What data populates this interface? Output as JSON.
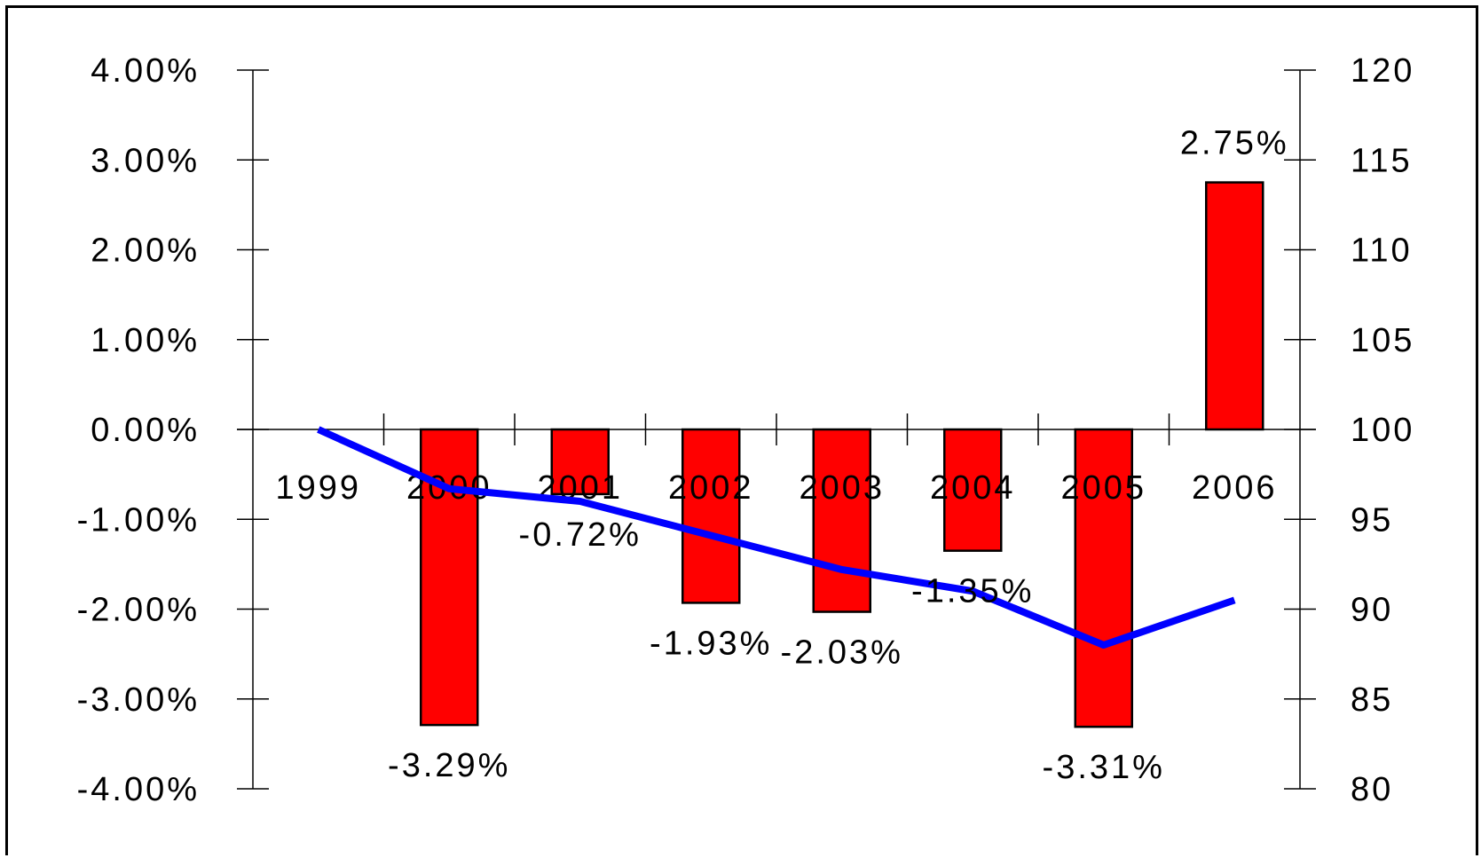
{
  "chart_data": {
    "type": "bar",
    "categories": [
      "1999",
      "2000",
      "2001",
      "2002",
      "2003",
      "2004",
      "2005",
      "2006"
    ],
    "series": [
      {
        "axis": "left",
        "type": "bar",
        "values": [
          null,
          -3.29,
          -0.72,
          -1.93,
          -2.03,
          -1.35,
          -3.31,
          2.75
        ],
        "data_labels": [
          "",
          "-3.29%",
          "-0.72%",
          "-1.93%",
          "-2.03%",
          "-1.35%",
          "-3.31%",
          "2.75%"
        ],
        "color": "#ff0000"
      },
      {
        "axis": "right",
        "type": "line",
        "values": [
          100,
          96.7,
          96.0,
          94.1,
          92.2,
          91.0,
          88.0,
          90.5
        ],
        "color": "#0000ff"
      }
    ],
    "y_left": {
      "range": [
        -4,
        4
      ],
      "ticks": [
        4,
        3,
        2,
        1,
        0,
        -1,
        -2,
        -3,
        -4
      ],
      "tick_labels": [
        "4.00%",
        "3.00%",
        "2.00%",
        "1.00%",
        "0.00%",
        "-1.00%",
        "-2.00%",
        "-3.00%",
        "-4.00%"
      ]
    },
    "y_right": {
      "range": [
        80,
        120
      ],
      "ticks": [
        120,
        115,
        110,
        105,
        100,
        95,
        90,
        85,
        80
      ],
      "tick_labels": [
        "120",
        "115",
        "110",
        "105",
        "100",
        "95",
        "90",
        "85",
        "80"
      ]
    },
    "title": "",
    "xlabel": "",
    "ylabel": "",
    "grid": false,
    "legend": "none"
  }
}
